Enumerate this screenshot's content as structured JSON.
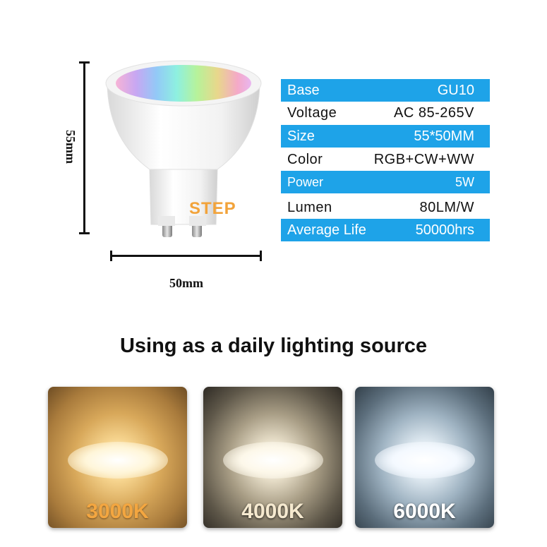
{
  "dimensions": {
    "height_label": "55mm",
    "width_label": "50mm"
  },
  "bulb": {
    "brand": "STEP"
  },
  "specs": [
    {
      "label": "Base",
      "value": "GU10",
      "style": "blue"
    },
    {
      "label": "Voltage",
      "value": "AC 85-265V",
      "style": "white"
    },
    {
      "label": "Size",
      "value": "55*50MM",
      "style": "blue"
    },
    {
      "label": "Color",
      "value": "RGB+CW+WW",
      "style": "white"
    },
    {
      "label": "Power",
      "value": "5W",
      "style": "blue"
    },
    {
      "label": "Lumen",
      "value": "80LM/W",
      "style": "white"
    },
    {
      "label": "Average Life",
      "value": "50000hrs",
      "style": "blue"
    }
  ],
  "heading": "Using as a daily lighting source",
  "temperatures": [
    {
      "label": "3000K",
      "color": "#f3a640"
    },
    {
      "label": "4000K",
      "color": "#f5e9cf"
    },
    {
      "label": "6000K",
      "color": "#ffffff"
    }
  ],
  "colors": {
    "spec_blue": "#1ea3e8",
    "brand_orange": "#f2a33a"
  }
}
